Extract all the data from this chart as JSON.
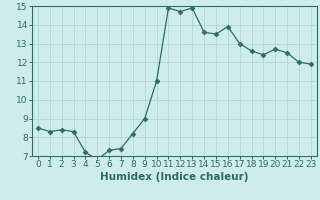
{
  "x": [
    0,
    1,
    2,
    3,
    4,
    5,
    6,
    7,
    8,
    9,
    10,
    11,
    12,
    13,
    14,
    15,
    16,
    17,
    18,
    19,
    20,
    21,
    22,
    23
  ],
  "y": [
    8.5,
    8.3,
    8.4,
    8.3,
    7.2,
    6.8,
    7.3,
    7.4,
    8.2,
    9.0,
    11.0,
    14.9,
    14.7,
    14.9,
    13.6,
    13.5,
    13.9,
    13.0,
    12.6,
    12.4,
    12.7,
    12.5,
    12.0,
    11.9
  ],
  "line_color": "#2d6e63",
  "marker": "D",
  "marker_size": 2.5,
  "bg_color": "#cdecea",
  "grid_color": "#aed8d4",
  "xlabel": "Humidex (Indice chaleur)",
  "xlabel_fontsize": 7.5,
  "tick_fontsize": 6.5,
  "ylim": [
    7,
    15
  ],
  "xlim": [
    -0.5,
    23.5
  ],
  "yticks": [
    7,
    8,
    9,
    10,
    11,
    12,
    13,
    14,
    15
  ],
  "xticks": [
    0,
    1,
    2,
    3,
    4,
    5,
    6,
    7,
    8,
    9,
    10,
    11,
    12,
    13,
    14,
    15,
    16,
    17,
    18,
    19,
    20,
    21,
    22,
    23
  ]
}
